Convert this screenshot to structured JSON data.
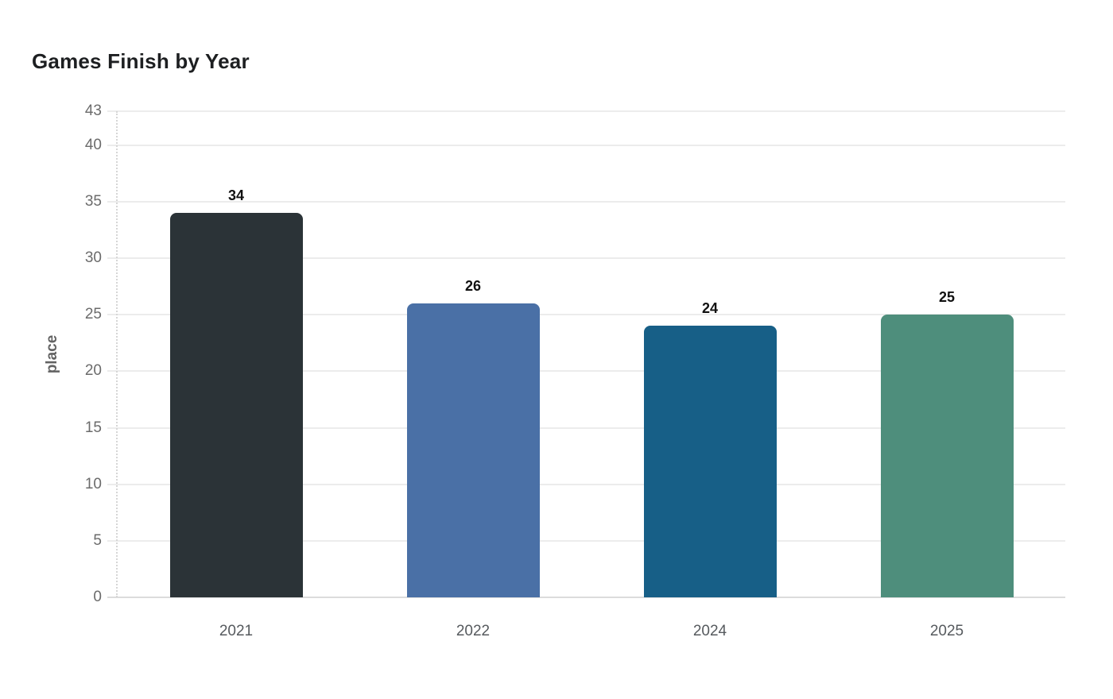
{
  "page": {
    "background_color": "#ffffff"
  },
  "chart_data": {
    "type": "bar",
    "title": "Games Finish by Year",
    "xlabel": "",
    "ylabel": "place",
    "categories": [
      "2021",
      "2022",
      "2024",
      "2025"
    ],
    "values": [
      34,
      26,
      24,
      25
    ],
    "data_labels": [
      "34",
      "26",
      "24",
      "25"
    ],
    "bar_colors": [
      "#2b3337",
      "#4a70a6",
      "#175f87",
      "#4e8e7c"
    ],
    "ylim": [
      0,
      43
    ],
    "yticks": [
      0,
      5,
      10,
      15,
      20,
      25,
      30,
      35,
      40,
      43
    ],
    "grid": true,
    "legend": "none",
    "colors": {
      "title_text": "#1d1f21",
      "gridline": "#ececec",
      "baseline": "#dcdcdc",
      "axis_dotted_line": "#d6d6d6",
      "tick_mark": "#ececec",
      "y_tick_text": "#6b6b6b",
      "x_tick_text": "#565a5e",
      "value_label_text": "#111111",
      "axis_title_text": "#636363",
      "background": "#ffffff"
    }
  }
}
